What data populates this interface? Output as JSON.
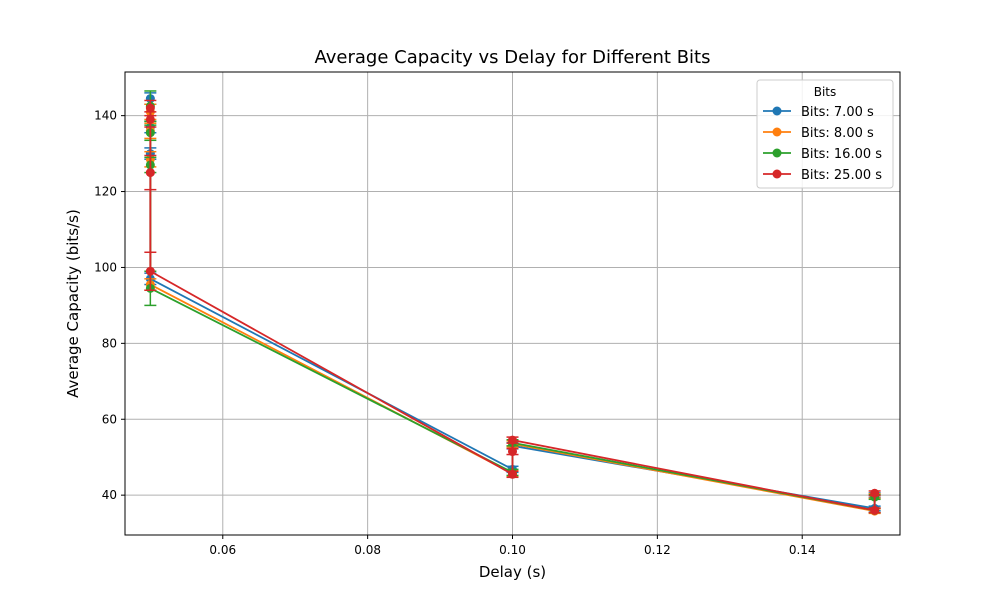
{
  "chart_data": {
    "type": "line",
    "title": "Average Capacity vs Delay for Different Bits",
    "xlabel": "Delay (s)",
    "ylabel": "Average Capacity (bits/s)",
    "xlim": [
      0.0465,
      0.1535
    ],
    "ylim": [
      29.5,
      151.5
    ],
    "xticks": [
      0.06,
      0.08,
      0.1,
      0.12,
      0.14
    ],
    "xtick_labels": [
      "0.06",
      "0.08",
      "0.10",
      "0.12",
      "0.14"
    ],
    "yticks": [
      40,
      60,
      80,
      100,
      120,
      140
    ],
    "ytick_labels": [
      "40",
      "60",
      "80",
      "100",
      "120",
      "140"
    ],
    "grid": true,
    "legend": {
      "title": "Bits",
      "placement": "top-right"
    },
    "series": [
      {
        "name": "Bits: 7.00 s",
        "color": "#1f77b4",
        "points": [
          {
            "x": 0.05,
            "y": 144.5,
            "err": 1.5
          },
          {
            "x": 0.05,
            "y": 137.0,
            "err": 1.5
          },
          {
            "x": 0.05,
            "y": 130.0,
            "err": 1.5
          },
          {
            "x": 0.05,
            "y": 97.0,
            "err": 1.5
          },
          {
            "x": 0.1,
            "y": 46.8,
            "err": 0.8
          },
          {
            "x": 0.1,
            "y": 53.0,
            "err": 0.8
          },
          {
            "x": 0.15,
            "y": 36.5,
            "err": 0.6
          },
          {
            "x": 0.15,
            "y": 40.0,
            "err": 0.6
          }
        ]
      },
      {
        "name": "Bits: 8.00 s",
        "color": "#ff7f0e",
        "points": [
          {
            "x": 0.05,
            "y": 141.0,
            "err": 2.0
          },
          {
            "x": 0.05,
            "y": 136.0,
            "err": 2.0
          },
          {
            "x": 0.05,
            "y": 128.5,
            "err": 2.0
          },
          {
            "x": 0.05,
            "y": 95.5,
            "err": 1.5
          },
          {
            "x": 0.1,
            "y": 45.7,
            "err": 0.8
          },
          {
            "x": 0.1,
            "y": 53.5,
            "err": 0.8
          },
          {
            "x": 0.15,
            "y": 35.8,
            "err": 0.6
          },
          {
            "x": 0.15,
            "y": 39.8,
            "err": 0.6
          }
        ]
      },
      {
        "name": "Bits: 16.00 s",
        "color": "#2ca02c",
        "points": [
          {
            "x": 0.05,
            "y": 142.5,
            "err": 4.0
          },
          {
            "x": 0.05,
            "y": 135.5,
            "err": 2.0
          },
          {
            "x": 0.05,
            "y": 127.0,
            "err": 2.0
          },
          {
            "x": 0.05,
            "y": 94.5,
            "err": 4.5
          },
          {
            "x": 0.1,
            "y": 46.0,
            "err": 0.8
          },
          {
            "x": 0.1,
            "y": 53.8,
            "err": 0.8
          },
          {
            "x": 0.15,
            "y": 36.0,
            "err": 0.6
          },
          {
            "x": 0.15,
            "y": 39.5,
            "err": 0.6
          }
        ]
      },
      {
        "name": "Bits: 25.00 s",
        "color": "#d62728",
        "points": [
          {
            "x": 0.05,
            "y": 142.0,
            "err": 2.0
          },
          {
            "x": 0.05,
            "y": 139.0,
            "err": 2.0
          },
          {
            "x": 0.05,
            "y": 125.0,
            "err": 4.5
          },
          {
            "x": 0.05,
            "y": 99.0,
            "err": 5.0
          },
          {
            "x": 0.1,
            "y": 45.5,
            "err": 0.8
          },
          {
            "x": 0.1,
            "y": 51.5,
            "err": 0.8
          },
          {
            "x": 0.1,
            "y": 54.5,
            "err": 0.8
          },
          {
            "x": 0.15,
            "y": 36.0,
            "err": 0.6
          },
          {
            "x": 0.15,
            "y": 40.5,
            "err": 0.6
          }
        ]
      }
    ]
  }
}
